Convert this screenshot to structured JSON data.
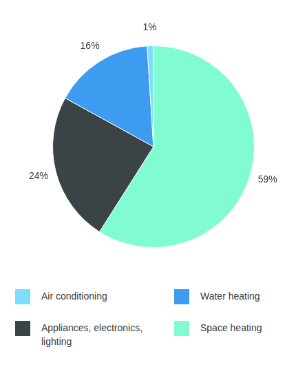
{
  "chart_data": {
    "type": "pie",
    "categories": [
      "Space heating",
      "Appliances, electronics, lighting",
      "Water heating",
      "Air conditioning"
    ],
    "values": [
      59,
      24,
      16,
      1
    ],
    "value_labels": [
      "59%",
      "24%",
      "16%",
      "1%"
    ],
    "colors": [
      "#80fcd0",
      "#3a4345",
      "#3d9bf0",
      "#7fdcff"
    ],
    "data_labels": true,
    "legend": "bottom"
  }
}
